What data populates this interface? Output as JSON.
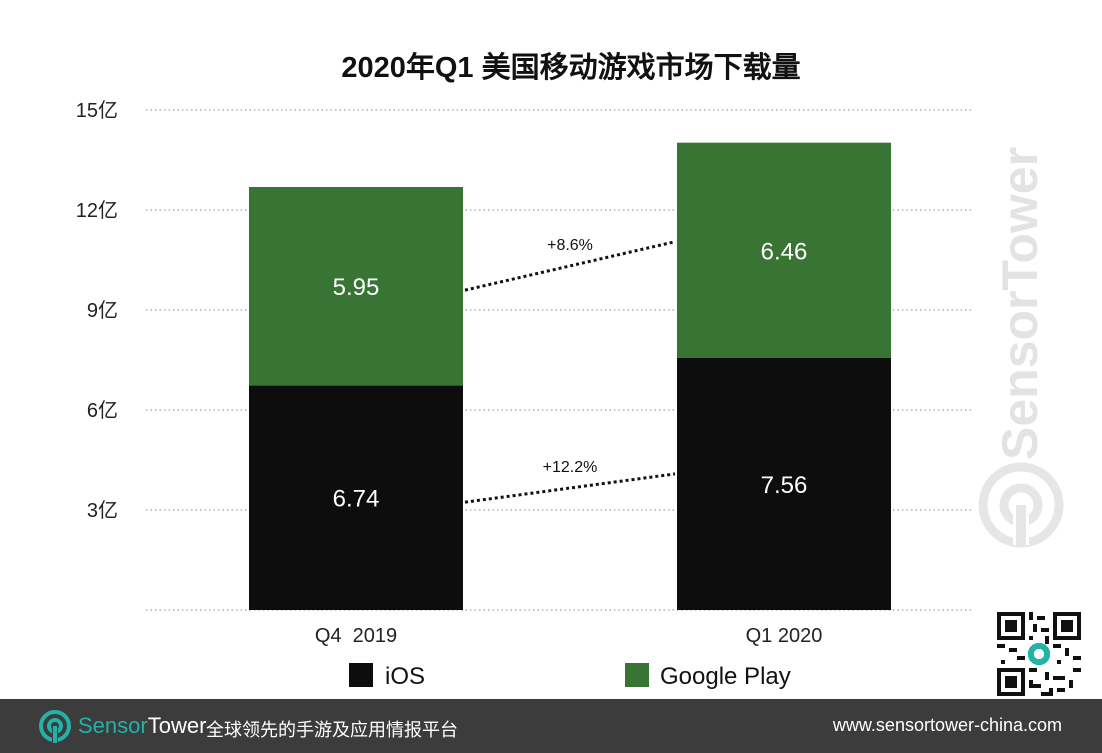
{
  "chart_data": {
    "type": "bar",
    "stacked": true,
    "title": "2020年Q1 美国移动游戏市场下载量",
    "categories": [
      "Q4  2019",
      "Q1 2020"
    ],
    "series": [
      {
        "name": "iOS",
        "values": [
          6.74,
          7.56
        ],
        "labels": [
          "6.74",
          "7.56"
        ],
        "color": "#0d0d0d"
      },
      {
        "name": "Google Play",
        "values": [
          5.95,
          6.46
        ],
        "labels": [
          "5.95",
          "6.46"
        ],
        "color": "#387434"
      }
    ],
    "ylim": [
      0,
      15
    ],
    "yticks": [
      3,
      6,
      9,
      12,
      15
    ],
    "ytick_labels": [
      "3亿",
      "6亿",
      "9亿",
      "12亿",
      "15亿"
    ],
    "grid": true,
    "legend": "bottom-center",
    "annotations": [
      {
        "text": "+12.2%",
        "series": "iOS"
      },
      {
        "text": "+8.6%",
        "series": "Google Play"
      }
    ]
  },
  "watermark": "SensorTower",
  "footer": {
    "brand_part1": "Sensor",
    "brand_part2": "Tower",
    "tagline": "全球领先的手游及应用情报平台",
    "url": "www.sensortower-china.com"
  },
  "icons": {
    "logo": "sensortower-logo-icon",
    "qr": "qr-code"
  },
  "colors": {
    "footer_bg": "#3c3c3c",
    "brand_accent": "#23b2a8",
    "watermark": "#e3e3e3"
  }
}
